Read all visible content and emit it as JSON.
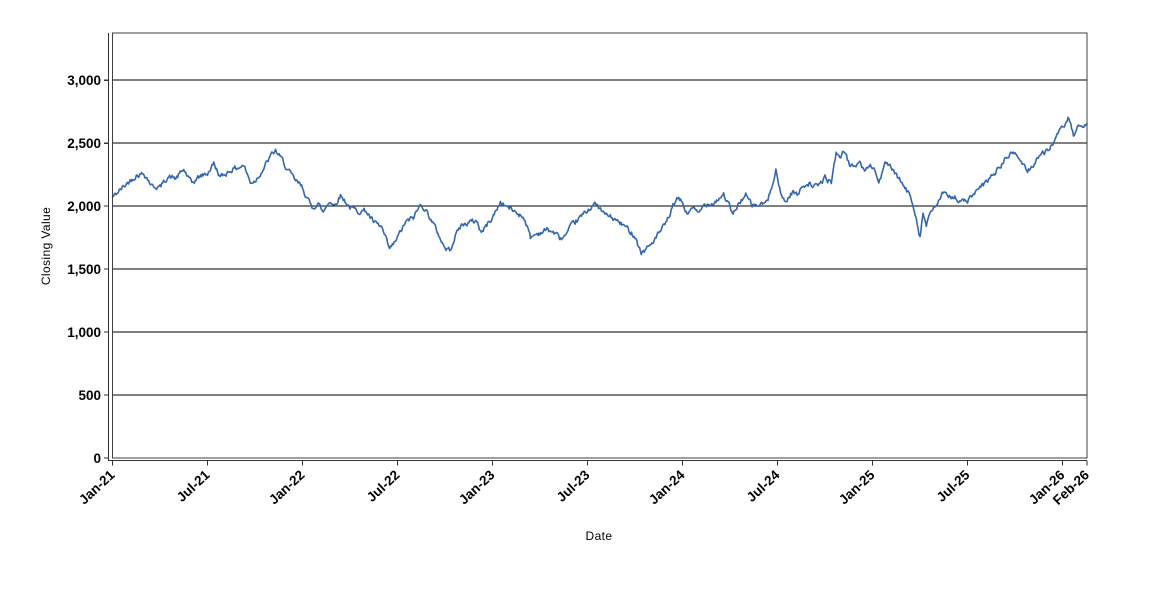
{
  "chart_data": {
    "type": "line",
    "title": "",
    "xlabel": "Date",
    "ylabel": "Closing Value",
    "series": [
      {
        "name": "Closing Value"
      }
    ],
    "line_color": "#3467ad",
    "grid_color": "#000000",
    "frame_color": "#404040",
    "axis_color": "#333333",
    "background": "#ffffff",
    "grid_on": true,
    "legend": "none",
    "ylim": [
      0,
      3375
    ],
    "x_range_months": [
      0,
      61.55
    ],
    "y_ticks": [
      {
        "value": 0,
        "label": "0"
      },
      {
        "value": 500,
        "label": "500"
      },
      {
        "value": 1000,
        "label": "1,000"
      },
      {
        "value": 1500,
        "label": "1,500"
      },
      {
        "value": 2000,
        "label": "2,000"
      },
      {
        "value": 2500,
        "label": "2,500"
      },
      {
        "value": 3000,
        "label": "3,000"
      }
    ],
    "x_ticks": [
      {
        "month": 0,
        "label": "Jan-21"
      },
      {
        "month": 6,
        "label": "Jul-21"
      },
      {
        "month": 12,
        "label": "Jan-22"
      },
      {
        "month": 18,
        "label": "Jul-22"
      },
      {
        "month": 24,
        "label": "Jan-23"
      },
      {
        "month": 30,
        "label": "Jul-23"
      },
      {
        "month": 36,
        "label": "Jan-24"
      },
      {
        "month": 42,
        "label": "Jul-24"
      },
      {
        "month": 48,
        "label": "Jan-25"
      },
      {
        "month": 54,
        "label": "Jul-25"
      },
      {
        "month": 60,
        "label": "Jan-26"
      },
      {
        "month": 61.55,
        "label": "Feb-26"
      }
    ],
    "anchors_comment": "Estimated closing-value path: [months since Jan-2021, value]",
    "anchors": [
      [
        0,
        2070
      ],
      [
        0.5,
        2130
      ],
      [
        1,
        2190
      ],
      [
        1.5,
        2245
      ],
      [
        2,
        2260
      ],
      [
        2.5,
        2160
      ],
      [
        3,
        2150
      ],
      [
        3.5,
        2235
      ],
      [
        4,
        2220
      ],
      [
        4.5,
        2290
      ],
      [
        5,
        2180
      ],
      [
        5.5,
        2235
      ],
      [
        6,
        2260
      ],
      [
        6.4,
        2340
      ],
      [
        6.8,
        2230
      ],
      [
        7,
        2245
      ],
      [
        7.5,
        2290
      ],
      [
        8,
        2310
      ],
      [
        8.3,
        2325
      ],
      [
        8.7,
        2190
      ],
      [
        9,
        2200
      ],
      [
        9.5,
        2290
      ],
      [
        10,
        2400
      ],
      [
        10.3,
        2440
      ],
      [
        10.7,
        2370
      ],
      [
        11,
        2300
      ],
      [
        11.5,
        2210
      ],
      [
        12,
        2150
      ],
      [
        12.3,
        2060
      ],
      [
        12.6,
        1990
      ],
      [
        13,
        2020
      ],
      [
        13.3,
        1950
      ],
      [
        13.7,
        2045
      ],
      [
        14,
        2005
      ],
      [
        14.4,
        2085
      ],
      [
        14.7,
        2040
      ],
      [
        15,
        1990
      ],
      [
        15.5,
        1960
      ],
      [
        16,
        1965
      ],
      [
        16.5,
        1870
      ],
      [
        17,
        1830
      ],
      [
        17.5,
        1655
      ],
      [
        17.8,
        1705
      ],
      [
        18,
        1750
      ],
      [
        18.5,
        1870
      ],
      [
        19,
        1910
      ],
      [
        19.5,
        2020
      ],
      [
        20,
        1925
      ],
      [
        20.5,
        1800
      ],
      [
        21,
        1665
      ],
      [
        21.3,
        1650
      ],
      [
        21.7,
        1780
      ],
      [
        22,
        1845
      ],
      [
        22.5,
        1870
      ],
      [
        23,
        1885
      ],
      [
        23.3,
        1790
      ],
      [
        23.7,
        1860
      ],
      [
        24,
        1910
      ],
      [
        24.5,
        2030
      ],
      [
        25,
        1990
      ],
      [
        25.5,
        1950
      ],
      [
        26,
        1910
      ],
      [
        26.4,
        1750
      ],
      [
        26.7,
        1775
      ],
      [
        27,
        1790
      ],
      [
        27.5,
        1815
      ],
      [
        28,
        1780
      ],
      [
        28.3,
        1740
      ],
      [
        28.7,
        1775
      ],
      [
        29,
        1845
      ],
      [
        29.5,
        1905
      ],
      [
        30,
        1965
      ],
      [
        30.4,
        2020
      ],
      [
        30.7,
        1990
      ],
      [
        31,
        1945
      ],
      [
        31.5,
        1910
      ],
      [
        32,
        1870
      ],
      [
        32.5,
        1825
      ],
      [
        33,
        1765
      ],
      [
        33.4,
        1628
      ],
      [
        33.7,
        1660
      ],
      [
        34,
        1695
      ],
      [
        34.5,
        1780
      ],
      [
        35,
        1870
      ],
      [
        35.4,
        2000
      ],
      [
        35.7,
        2058
      ],
      [
        36,
        2030
      ],
      [
        36.3,
        1928
      ],
      [
        36.6,
        2000
      ],
      [
        37,
        1935
      ],
      [
        37.4,
        2015
      ],
      [
        38,
        2030
      ],
      [
        38.6,
        2095
      ],
      [
        39,
        1990
      ],
      [
        39.2,
        1925
      ],
      [
        39.6,
        2035
      ],
      [
        40,
        2085
      ],
      [
        40.4,
        2005
      ],
      [
        41,
        2010
      ],
      [
        41.4,
        2045
      ],
      [
        41.9,
        2295
      ],
      [
        42.2,
        2090
      ],
      [
        42.5,
        2035
      ],
      [
        43,
        2120
      ],
      [
        43.3,
        2085
      ],
      [
        43.6,
        2170
      ],
      [
        44,
        2180
      ],
      [
        44.5,
        2150
      ],
      [
        45,
        2225
      ],
      [
        45.4,
        2190
      ],
      [
        45.7,
        2420
      ],
      [
        46,
        2400
      ],
      [
        46.3,
        2435
      ],
      [
        46.6,
        2300
      ],
      [
        46.9,
        2330
      ],
      [
        47.2,
        2350
      ],
      [
        47.5,
        2270
      ],
      [
        47.8,
        2330
      ],
      [
        48.1,
        2300
      ],
      [
        48.4,
        2190
      ],
      [
        48.8,
        2330
      ],
      [
        49.1,
        2330
      ],
      [
        49.4,
        2250
      ],
      [
        49.7,
        2215
      ],
      [
        50,
        2150
      ],
      [
        50.4,
        2080
      ],
      [
        50.7,
        1950
      ],
      [
        51,
        1760
      ],
      [
        51.2,
        1945
      ],
      [
        51.4,
        1845
      ],
      [
        51.7,
        1955
      ],
      [
        52,
        2000
      ],
      [
        52.4,
        2100
      ],
      [
        52.8,
        2070
      ],
      [
        53.2,
        2085
      ],
      [
        53.5,
        2032
      ],
      [
        54,
        2045
      ],
      [
        54.5,
        2105
      ],
      [
        55,
        2165
      ],
      [
        55.5,
        2235
      ],
      [
        56,
        2300
      ],
      [
        56.5,
        2395
      ],
      [
        57,
        2425
      ],
      [
        57.4,
        2350
      ],
      [
        57.8,
        2285
      ],
      [
        58.1,
        2315
      ],
      [
        58.4,
        2385
      ],
      [
        58.8,
        2420
      ],
      [
        59.2,
        2465
      ],
      [
        59.6,
        2540
      ],
      [
        60,
        2625
      ],
      [
        60.35,
        2692
      ],
      [
        60.7,
        2565
      ],
      [
        61,
        2625
      ],
      [
        61.3,
        2600
      ],
      [
        61.55,
        2655
      ]
    ],
    "noise": {
      "seed": 42,
      "amplitude": 20,
      "smoothing": 0.5,
      "scale": 0.9,
      "step_months": 0.055
    }
  }
}
